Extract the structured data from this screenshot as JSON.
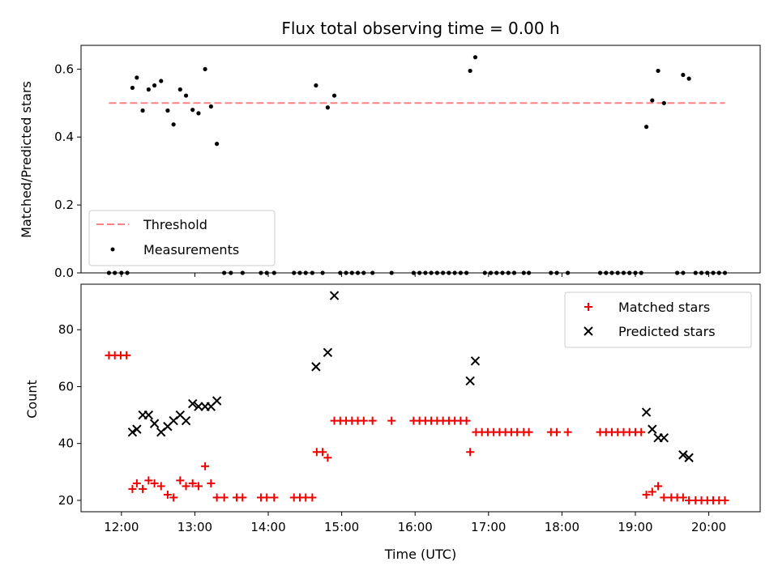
{
  "title": "Flux total observing time = 0.00 h",
  "colors": {
    "threshold": "#ff8080",
    "matched": "#ee0000",
    "predicted": "#000000",
    "measurement": "#000000"
  },
  "chart_data": [
    {
      "type": "scatter",
      "title": "Flux total observing time = 0.00 h",
      "xlabel": "",
      "ylabel": "Matched/Predicted stars",
      "xlim": [
        11.45,
        20.7
      ],
      "ylim": [
        0,
        0.67
      ],
      "yticks": [
        0,
        0.2,
        0.4,
        0.6
      ],
      "ytick_labels": [
        "0.0",
        "0.2",
        "0.4",
        "0.6"
      ],
      "xticks": [
        12,
        13,
        14,
        15,
        16,
        17,
        18,
        19,
        20
      ],
      "legend_position": "lower-left",
      "legend": [
        {
          "key": "threshold",
          "label": "Threshold"
        },
        {
          "key": "measurements",
          "label": "Measurements"
        }
      ],
      "series": [
        {
          "name": "Threshold",
          "type": "line",
          "dashed": true,
          "x": [
            11.83,
            20.22
          ],
          "y": [
            0.5,
            0.5
          ]
        },
        {
          "name": "Measurements",
          "type": "scatter",
          "points": [
            [
              12.15,
              0.545
            ],
            [
              12.21,
              0.575
            ],
            [
              12.29,
              0.478
            ],
            [
              12.37,
              0.54
            ],
            [
              12.45,
              0.552
            ],
            [
              12.54,
              0.565
            ],
            [
              12.63,
              0.478
            ],
            [
              12.71,
              0.437
            ],
            [
              12.8,
              0.54
            ],
            [
              12.88,
              0.522
            ],
            [
              12.97,
              0.48
            ],
            [
              13.05,
              0.47
            ],
            [
              13.14,
              0.6
            ],
            [
              13.22,
              0.49
            ],
            [
              13.3,
              0.38
            ],
            [
              14.65,
              0.552
            ],
            [
              14.81,
              0.487
            ],
            [
              14.9,
              0.522
            ],
            [
              16.75,
              0.595
            ],
            [
              16.82,
              0.635
            ],
            [
              19.15,
              0.43
            ],
            [
              19.23,
              0.508
            ],
            [
              19.31,
              0.595
            ],
            [
              19.39,
              0.5
            ],
            [
              19.65,
              0.583
            ],
            [
              19.73,
              0.572
            ],
            [
              11.83,
              0
            ],
            [
              11.91,
              0
            ],
            [
              12.0,
              0
            ],
            [
              12.08,
              0
            ],
            [
              13.4,
              0
            ],
            [
              13.49,
              0
            ],
            [
              13.65,
              0
            ],
            [
              13.9,
              0
            ],
            [
              13.98,
              0
            ],
            [
              14.08,
              0
            ],
            [
              14.35,
              0
            ],
            [
              14.43,
              0
            ],
            [
              14.51,
              0
            ],
            [
              14.6,
              0
            ],
            [
              14.74,
              0
            ],
            [
              14.98,
              0
            ],
            [
              15.06,
              0
            ],
            [
              15.14,
              0
            ],
            [
              15.22,
              0
            ],
            [
              15.3,
              0
            ],
            [
              15.42,
              0
            ],
            [
              15.68,
              0
            ],
            [
              15.98,
              0
            ],
            [
              16.06,
              0
            ],
            [
              16.14,
              0
            ],
            [
              16.22,
              0
            ],
            [
              16.3,
              0
            ],
            [
              16.38,
              0
            ],
            [
              16.46,
              0
            ],
            [
              16.54,
              0
            ],
            [
              16.62,
              0
            ],
            [
              16.7,
              0
            ],
            [
              16.95,
              0
            ],
            [
              17.03,
              0
            ],
            [
              17.11,
              0
            ],
            [
              17.19,
              0
            ],
            [
              17.27,
              0
            ],
            [
              17.35,
              0
            ],
            [
              17.48,
              0
            ],
            [
              17.55,
              0
            ],
            [
              17.85,
              0
            ],
            [
              17.93,
              0
            ],
            [
              18.08,
              0
            ],
            [
              18.52,
              0
            ],
            [
              18.6,
              0
            ],
            [
              18.68,
              0
            ],
            [
              18.76,
              0
            ],
            [
              18.84,
              0
            ],
            [
              18.92,
              0
            ],
            [
              19.0,
              0
            ],
            [
              19.08,
              0
            ],
            [
              19.57,
              0
            ],
            [
              19.65,
              0
            ],
            [
              19.82,
              0
            ],
            [
              19.9,
              0
            ],
            [
              19.98,
              0
            ],
            [
              20.06,
              0
            ],
            [
              20.14,
              0
            ],
            [
              20.22,
              0
            ]
          ]
        }
      ]
    },
    {
      "type": "scatter",
      "title": "",
      "xlabel": "Time (UTC)",
      "ylabel": "Count",
      "xlim": [
        11.45,
        20.7
      ],
      "ylim": [
        16,
        96
      ],
      "yticks": [
        20,
        40,
        60,
        80
      ],
      "ytick_labels": [
        "20",
        "40",
        "60",
        "80"
      ],
      "xticks": [
        12,
        13,
        14,
        15,
        16,
        17,
        18,
        19,
        20
      ],
      "xtick_labels": [
        "12:00",
        "13:00",
        "14:00",
        "15:00",
        "16:00",
        "17:00",
        "18:00",
        "19:00",
        "20:00"
      ],
      "legend_position": "top-right",
      "legend": [
        {
          "key": "matched",
          "label": "Matched stars"
        },
        {
          "key": "predicted",
          "label": "Predicted stars"
        }
      ],
      "series": [
        {
          "name": "Matched stars",
          "marker": "+",
          "points": [
            [
              11.83,
              71
            ],
            [
              11.91,
              71
            ],
            [
              11.99,
              71
            ],
            [
              12.07,
              71
            ],
            [
              12.15,
              24
            ],
            [
              12.21,
              26
            ],
            [
              12.29,
              24
            ],
            [
              12.37,
              27
            ],
            [
              12.45,
              26
            ],
            [
              12.54,
              25
            ],
            [
              12.63,
              22
            ],
            [
              12.71,
              21
            ],
            [
              12.8,
              27
            ],
            [
              12.88,
              25
            ],
            [
              12.97,
              26
            ],
            [
              13.05,
              25
            ],
            [
              13.14,
              32
            ],
            [
              13.22,
              26
            ],
            [
              13.3,
              21
            ],
            [
              13.4,
              21
            ],
            [
              13.57,
              21
            ],
            [
              13.65,
              21
            ],
            [
              13.9,
              21
            ],
            [
              13.98,
              21
            ],
            [
              14.08,
              21
            ],
            [
              14.35,
              21
            ],
            [
              14.43,
              21
            ],
            [
              14.51,
              21
            ],
            [
              14.6,
              21
            ],
            [
              14.66,
              37
            ],
            [
              14.74,
              37
            ],
            [
              14.81,
              35
            ],
            [
              14.9,
              48
            ],
            [
              14.98,
              48
            ],
            [
              15.06,
              48
            ],
            [
              15.14,
              48
            ],
            [
              15.22,
              48
            ],
            [
              15.3,
              48
            ],
            [
              15.42,
              48
            ],
            [
              15.68,
              48
            ],
            [
              15.98,
              48
            ],
            [
              16.06,
              48
            ],
            [
              16.14,
              48
            ],
            [
              16.22,
              48
            ],
            [
              16.3,
              48
            ],
            [
              16.38,
              48
            ],
            [
              16.46,
              48
            ],
            [
              16.54,
              48
            ],
            [
              16.62,
              48
            ],
            [
              16.7,
              48
            ],
            [
              16.75,
              37
            ],
            [
              16.83,
              44
            ],
            [
              16.91,
              44
            ],
            [
              16.99,
              44
            ],
            [
              17.07,
              44
            ],
            [
              17.15,
              44
            ],
            [
              17.23,
              44
            ],
            [
              17.31,
              44
            ],
            [
              17.39,
              44
            ],
            [
              17.48,
              44
            ],
            [
              17.55,
              44
            ],
            [
              17.85,
              44
            ],
            [
              17.93,
              44
            ],
            [
              18.08,
              44
            ],
            [
              18.52,
              44
            ],
            [
              18.6,
              44
            ],
            [
              18.68,
              44
            ],
            [
              18.76,
              44
            ],
            [
              18.84,
              44
            ],
            [
              18.92,
              44
            ],
            [
              19.0,
              44
            ],
            [
              19.08,
              44
            ],
            [
              19.15,
              22
            ],
            [
              19.23,
              23
            ],
            [
              19.31,
              25
            ],
            [
              19.39,
              21
            ],
            [
              19.49,
              21
            ],
            [
              19.57,
              21
            ],
            [
              19.65,
              21
            ],
            [
              19.73,
              20
            ],
            [
              19.82,
              20
            ],
            [
              19.9,
              20
            ],
            [
              19.98,
              20
            ],
            [
              20.06,
              20
            ],
            [
              20.14,
              20
            ],
            [
              20.22,
              20
            ]
          ]
        },
        {
          "name": "Predicted stars",
          "marker": "x",
          "points": [
            [
              12.15,
              44
            ],
            [
              12.21,
              45
            ],
            [
              12.29,
              50
            ],
            [
              12.37,
              50
            ],
            [
              12.45,
              47
            ],
            [
              12.54,
              44
            ],
            [
              12.63,
              46
            ],
            [
              12.71,
              48
            ],
            [
              12.8,
              50
            ],
            [
              12.88,
              48
            ],
            [
              12.97,
              54
            ],
            [
              13.05,
              53
            ],
            [
              13.14,
              53
            ],
            [
              13.22,
              53
            ],
            [
              13.3,
              55
            ],
            [
              14.65,
              67
            ],
            [
              14.81,
              72
            ],
            [
              14.9,
              92
            ],
            [
              16.75,
              62
            ],
            [
              16.82,
              69
            ],
            [
              19.15,
              51
            ],
            [
              19.23,
              45
            ],
            [
              19.31,
              42
            ],
            [
              19.39,
              42
            ],
            [
              19.65,
              36
            ],
            [
              19.73,
              35
            ]
          ]
        }
      ]
    }
  ]
}
